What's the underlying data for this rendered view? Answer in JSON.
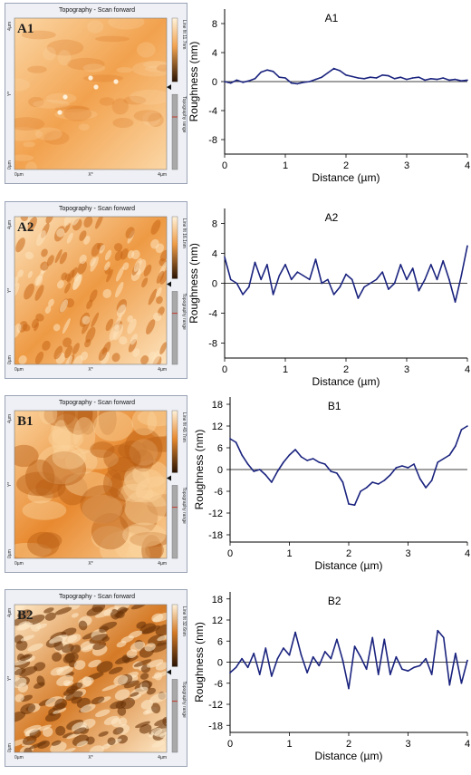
{
  "afm_panels": [
    {
      "label": "A1",
      "title": "Topography - Scan forward",
      "scale_label": "Line fit 11.7nm",
      "range_label": "Topography range",
      "y_top": "4µm",
      "y_mid": "Y*",
      "y_bottom": "0µm",
      "x_left": "0µm",
      "x_mid": "X*",
      "x_right": "4µm",
      "color_base": "#f2a24e",
      "color_light": "#fbd7a6",
      "color_dark": "#d8741f"
    },
    {
      "label": "A2",
      "title": "Topography - Scan forward",
      "scale_label": "Line fit 16.1nm",
      "range_label": "Topography range",
      "y_top": "4µm",
      "y_mid": "Y*",
      "y_bottom": "0µm",
      "x_left": "0µm",
      "x_mid": "X*",
      "x_right": "4µm",
      "color_base": "#ee9a44",
      "color_light": "#fde3bd",
      "color_dark": "#c96818"
    },
    {
      "label": "B1",
      "title": "Topography - Scan forward",
      "scale_label": "Line fit 49.7nm",
      "range_label": "Topography range",
      "y_top": "4µm",
      "y_mid": "Y*",
      "y_bottom": "0µm",
      "x_left": "0µm",
      "x_mid": "X*",
      "x_right": "4µm",
      "color_base": "#e8892f",
      "color_light": "#fbd29c",
      "color_dark": "#b95d13"
    },
    {
      "label": "B2",
      "title": "Topography - Scan forward",
      "scale_label": "Line fit 32.6nm",
      "range_label": "Topography range",
      "y_top": "4µm",
      "y_mid": "Y*",
      "y_bottom": "0µm",
      "x_left": "0µm",
      "x_mid": "X*",
      "x_right": "4µm",
      "color_base": "#d57a26",
      "color_light": "#fde7c6",
      "color_dark": "#6a3408"
    }
  ],
  "chart_data": [
    {
      "type": "line",
      "title": "A1",
      "xlabel": "Distance (µm)",
      "ylabel": "Roughness (nm)",
      "xlim": [
        0,
        4
      ],
      "ylim": [
        -10,
        10
      ],
      "yticks": [
        -8,
        -4,
        0,
        4,
        8
      ],
      "xticks": [
        0,
        1,
        2,
        3,
        4
      ],
      "color": "#1a237e",
      "x": [
        0,
        0.1,
        0.2,
        0.3,
        0.4,
        0.5,
        0.6,
        0.7,
        0.8,
        0.9,
        1.0,
        1.1,
        1.2,
        1.3,
        1.4,
        1.5,
        1.6,
        1.7,
        1.8,
        1.9,
        2.0,
        2.1,
        2.2,
        2.3,
        2.4,
        2.5,
        2.6,
        2.7,
        2.8,
        2.9,
        3.0,
        3.1,
        3.2,
        3.3,
        3.4,
        3.5,
        3.6,
        3.7,
        3.8,
        3.9,
        4.0
      ],
      "y": [
        0,
        -0.2,
        0.2,
        -0.1,
        0.1,
        0.4,
        1.3,
        1.6,
        1.4,
        0.6,
        0.5,
        -0.2,
        -0.3,
        -0.1,
        0,
        0.3,
        0.6,
        1.2,
        1.8,
        1.5,
        0.9,
        0.7,
        0.5,
        0.4,
        0.6,
        0.5,
        0.9,
        0.8,
        0.4,
        0.6,
        0.3,
        0.5,
        0.6,
        0.2,
        0.4,
        0.3,
        0.5,
        0.2,
        0.3,
        0.1,
        0.2
      ]
    },
    {
      "type": "line",
      "title": "A2",
      "xlabel": "Distance (µm)",
      "ylabel": "Roughness (nm)",
      "xlim": [
        0,
        4
      ],
      "ylim": [
        -10,
        10
      ],
      "yticks": [
        -8,
        -4,
        0,
        4,
        8
      ],
      "xticks": [
        0,
        1,
        2,
        3,
        4
      ],
      "color": "#1a237e",
      "x": [
        0,
        0.1,
        0.2,
        0.3,
        0.4,
        0.5,
        0.6,
        0.7,
        0.8,
        0.9,
        1.0,
        1.1,
        1.2,
        1.3,
        1.4,
        1.5,
        1.6,
        1.7,
        1.8,
        1.9,
        2.0,
        2.1,
        2.2,
        2.3,
        2.4,
        2.5,
        2.6,
        2.7,
        2.8,
        2.9,
        3.0,
        3.1,
        3.2,
        3.3,
        3.4,
        3.5,
        3.6,
        3.7,
        3.8,
        3.9,
        4.0
      ],
      "y": [
        3.5,
        0.5,
        0,
        -1.5,
        -0.5,
        2.8,
        0.5,
        2.5,
        -1.5,
        1.0,
        2.5,
        0.5,
        1.5,
        1.0,
        0.5,
        3.2,
        0,
        0.5,
        -1.5,
        -0.5,
        1.2,
        0.5,
        -2.0,
        -0.5,
        0,
        0.5,
        1.5,
        -0.8,
        0,
        2.5,
        0.5,
        2.0,
        -1.0,
        0.5,
        2.5,
        0.5,
        3.0,
        0.5,
        -2.5,
        1.0,
        5.0
      ]
    },
    {
      "type": "line",
      "title": "B1",
      "xlabel": "Distance (µm)",
      "ylabel": "Roughness (nm)",
      "xlim": [
        0,
        4
      ],
      "ylim": [
        -20,
        20
      ],
      "yticks": [
        -18,
        -12,
        -6,
        0,
        6,
        12,
        18
      ],
      "xticks": [
        0,
        1,
        2,
        3,
        4
      ],
      "color": "#1a237e",
      "x": [
        0,
        0.1,
        0.2,
        0.3,
        0.4,
        0.5,
        0.6,
        0.7,
        0.8,
        0.9,
        1.0,
        1.1,
        1.2,
        1.3,
        1.4,
        1.5,
        1.6,
        1.7,
        1.8,
        1.9,
        2.0,
        2.1,
        2.2,
        2.3,
        2.4,
        2.5,
        2.6,
        2.7,
        2.8,
        2.9,
        3.0,
        3.1,
        3.2,
        3.3,
        3.4,
        3.5,
        3.6,
        3.7,
        3.8,
        3.9,
        4.0
      ],
      "y": [
        8.5,
        7.5,
        4.0,
        1.5,
        -0.5,
        0,
        -1.5,
        -3.5,
        -0.5,
        2.0,
        4.0,
        5.5,
        3.5,
        2.5,
        3.0,
        2.0,
        1.5,
        -0.5,
        -1.0,
        -3.5,
        -9.5,
        -9.8,
        -6.0,
        -5.0,
        -3.5,
        -4.0,
        -3.0,
        -1.5,
        0.5,
        1.0,
        0.5,
        1.5,
        -2.5,
        -5.0,
        -3.0,
        2.0,
        3.0,
        4.0,
        6.5,
        11.0,
        12.0
      ]
    },
    {
      "type": "line",
      "title": "B2",
      "xlabel": "Distance (µm)",
      "ylabel": "Roughness (nm)",
      "xlim": [
        0,
        4
      ],
      "ylim": [
        -20,
        20
      ],
      "yticks": [
        -18,
        -12,
        -6,
        0,
        6,
        12,
        18
      ],
      "xticks": [
        0,
        1,
        2,
        3,
        4
      ],
      "color": "#1a237e",
      "x": [
        0,
        0.1,
        0.2,
        0.3,
        0.4,
        0.5,
        0.6,
        0.7,
        0.8,
        0.9,
        1.0,
        1.1,
        1.2,
        1.3,
        1.4,
        1.5,
        1.6,
        1.7,
        1.8,
        1.9,
        2.0,
        2.1,
        2.2,
        2.3,
        2.4,
        2.5,
        2.6,
        2.7,
        2.8,
        2.9,
        3.0,
        3.1,
        3.2,
        3.3,
        3.4,
        3.5,
        3.6,
        3.7,
        3.8,
        3.9,
        4.0
      ],
      "y": [
        -3.0,
        -1.5,
        1.0,
        -1.5,
        2.5,
        -3.5,
        4.0,
        -4.0,
        1.0,
        4.0,
        2.0,
        8.5,
        2.0,
        -3.0,
        1.5,
        -1.0,
        3.0,
        1.0,
        6.5,
        0.5,
        -7.5,
        4.5,
        1.5,
        -2.0,
        7.0,
        -3.5,
        6.5,
        -3.5,
        1.5,
        -2.0,
        -2.5,
        -1.5,
        -1.0,
        1.0,
        -3.5,
        9.0,
        7.0,
        -6.5,
        2.5,
        -6.0,
        0.5
      ]
    }
  ]
}
